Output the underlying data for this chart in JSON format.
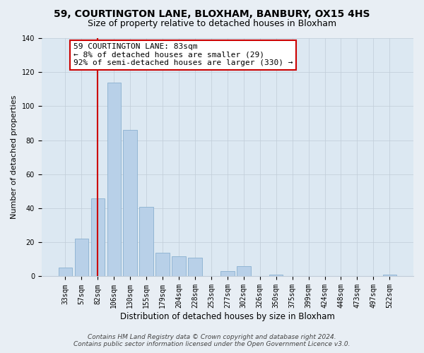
{
  "title": "59, COURTINGTON LANE, BLOXHAM, BANBURY, OX15 4HS",
  "subtitle": "Size of property relative to detached houses in Bloxham",
  "xlabel": "Distribution of detached houses by size in Bloxham",
  "ylabel": "Number of detached properties",
  "bar_labels": [
    "33sqm",
    "57sqm",
    "82sqm",
    "106sqm",
    "130sqm",
    "155sqm",
    "179sqm",
    "204sqm",
    "228sqm",
    "253sqm",
    "277sqm",
    "302sqm",
    "326sqm",
    "350sqm",
    "375sqm",
    "399sqm",
    "424sqm",
    "448sqm",
    "473sqm",
    "497sqm",
    "522sqm"
  ],
  "bar_values": [
    5,
    22,
    46,
    114,
    86,
    41,
    14,
    12,
    11,
    0,
    3,
    6,
    0,
    1,
    0,
    0,
    0,
    0,
    0,
    0,
    1
  ],
  "bar_color": "#b8d0e8",
  "bar_edge_color": "#8ab0d0",
  "vline_x": 2,
  "vline_color": "#cc0000",
  "annotation_text": "59 COURTINGTON LANE: 83sqm\n← 8% of detached houses are smaller (29)\n92% of semi-detached houses are larger (330) →",
  "annotation_box_color": "#ffffff",
  "annotation_box_edge_color": "#cc0000",
  "ylim": [
    0,
    140
  ],
  "yticks": [
    0,
    20,
    40,
    60,
    80,
    100,
    120,
    140
  ],
  "footer_line1": "Contains HM Land Registry data © Crown copyright and database right 2024.",
  "footer_line2": "Contains public sector information licensed under the Open Government Licence v3.0.",
  "background_color": "#e8eef4",
  "plot_background_color": "#dce8f2",
  "grid_color": "#c0ccd8",
  "title_fontsize": 10,
  "subtitle_fontsize": 9,
  "xlabel_fontsize": 8.5,
  "ylabel_fontsize": 8,
  "tick_fontsize": 7,
  "annotation_fontsize": 8,
  "footer_fontsize": 6.5
}
